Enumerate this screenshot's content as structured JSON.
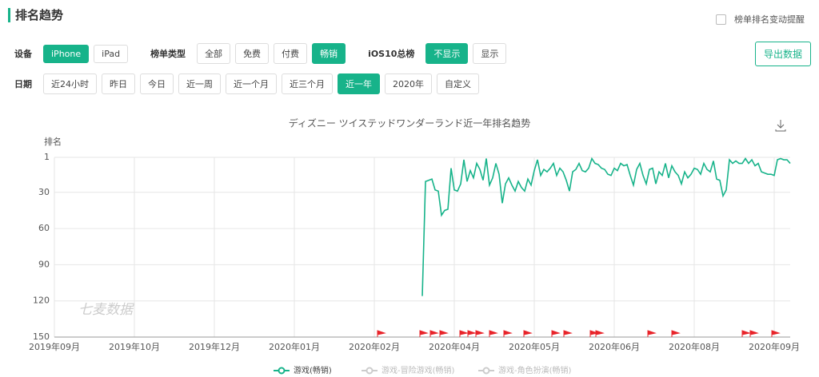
{
  "header": {
    "title": "排名趋势",
    "reminder": "榜单排名变动提醒",
    "export": "导出数据"
  },
  "filters": [
    {
      "label": "设备",
      "options": [
        "iPhone",
        "iPad"
      ],
      "active": 0
    },
    {
      "label": "榜单类型",
      "options": [
        "全部",
        "免费",
        "付费",
        "畅销"
      ],
      "active": 3
    },
    {
      "label": "iOS10总榜",
      "options": [
        "不显示",
        "显示"
      ],
      "active": 0
    },
    {
      "label": "日期",
      "options": [
        "近24小时",
        "昨日",
        "今日",
        "近一周",
        "近一个月",
        "近三个月",
        "近一年",
        "2020年",
        "自定义"
      ],
      "active": 6
    }
  ],
  "chart_data": {
    "type": "line",
    "title": "ディズニー ツイステッドワンダーランド近一年排名趋势",
    "y_label": "排名",
    "watermark": "七麦数据",
    "xlim": [
      0,
      9.2
    ],
    "xticks": [
      {
        "value": 0,
        "label": "2019年09月"
      },
      {
        "value": 1,
        "label": "2019年10月"
      },
      {
        "value": 2,
        "label": "2019年12月"
      },
      {
        "value": 3,
        "label": "2020年01月"
      },
      {
        "value": 4,
        "label": "2020年02月"
      },
      {
        "value": 5,
        "label": "2020年04月"
      },
      {
        "value": 6,
        "label": "2020年05月"
      },
      {
        "value": 7,
        "label": "2020年06月"
      },
      {
        "value": 8,
        "label": "2020年08月"
      },
      {
        "value": 9,
        "label": "2020年09月"
      }
    ],
    "ylim": [
      150,
      1
    ],
    "yticks": [
      1,
      30,
      60,
      90,
      120,
      150
    ],
    "grid": true,
    "x": [
      4.6,
      4.64,
      4.68,
      4.72,
      4.76,
      4.8,
      4.84,
      4.88,
      4.92,
      4.96,
      5,
      5.04,
      5.08,
      5.12,
      5.16,
      5.2,
      5.24,
      5.28,
      5.32,
      5.36,
      5.4,
      5.44,
      5.48,
      5.52,
      5.56,
      5.6,
      5.64,
      5.68,
      5.72,
      5.76,
      5.8,
      5.84,
      5.88,
      5.92,
      5.96,
      6,
      6.04,
      6.08,
      6.12,
      6.16,
      6.2,
      6.24,
      6.28,
      6.32,
      6.36,
      6.4,
      6.44,
      6.48,
      6.52,
      6.56,
      6.6,
      6.64,
      6.68,
      6.72,
      6.76,
      6.8,
      6.84,
      6.88,
      6.92,
      6.96,
      7,
      7.04,
      7.08,
      7.12,
      7.16,
      7.2,
      7.24,
      7.28,
      7.32,
      7.36,
      7.4,
      7.44,
      7.48,
      7.52,
      7.56,
      7.6,
      7.64,
      7.68,
      7.72,
      7.76,
      7.8,
      7.84,
      7.88,
      7.92,
      7.96,
      8,
      8.04,
      8.08,
      8.12,
      8.16,
      8.2,
      8.24,
      8.28,
      8.32,
      8.36,
      8.4,
      8.44,
      8.48,
      8.52,
      8.56,
      8.6,
      8.64,
      8.68,
      8.72,
      8.76,
      8.8,
      8.84,
      8.88,
      8.92,
      8.96,
      9,
      9.04,
      9.08,
      9.12,
      9.16,
      9.2
    ],
    "series": [
      {
        "name": "游戏(畅销)",
        "color": "#17b38a",
        "values": [
          116,
          21,
          20,
          19,
          28,
          29,
          49,
          45,
          44,
          10,
          28,
          29,
          23,
          3,
          21,
          12,
          18,
          6,
          11,
          20,
          2,
          24,
          18,
          6,
          15,
          39,
          23,
          18,
          24,
          29,
          21,
          26,
          29,
          19,
          24,
          12,
          3,
          16,
          11,
          13,
          10,
          6,
          16,
          10,
          13,
          20,
          29,
          13,
          11,
          6,
          12,
          13,
          10,
          2,
          6,
          7,
          10,
          11,
          15,
          16,
          10,
          12,
          6,
          8,
          7,
          16,
          24,
          11,
          6,
          16,
          23,
          11,
          10,
          23,
          13,
          16,
          6,
          18,
          8,
          13,
          16,
          23,
          13,
          18,
          15,
          10,
          11,
          15,
          6,
          11,
          13,
          4,
          19,
          20,
          33,
          28,
          3,
          6,
          4,
          6,
          6,
          2,
          6,
          3,
          8,
          6,
          13,
          14,
          15,
          15,
          16,
          3,
          2,
          3,
          3,
          6
        ]
      }
    ],
    "legend": [
      {
        "name": "游戏(畅销)",
        "color": "#17b38a"
      },
      {
        "name": "游戏-冒险游戏(畅销)",
        "color": "#cccccc"
      },
      {
        "name": "游戏-角色扮演(畅销)",
        "color": "#cccccc"
      }
    ],
    "flags": {
      "color": "#e8242a",
      "x": [
        4.04,
        4.57,
        4.7,
        4.82,
        5.07,
        5.17,
        5.27,
        5.44,
        5.62,
        5.87,
        6.22,
        6.37,
        6.7,
        6.77,
        7.42,
        7.72,
        8.6,
        8.7,
        8.97
      ]
    }
  }
}
